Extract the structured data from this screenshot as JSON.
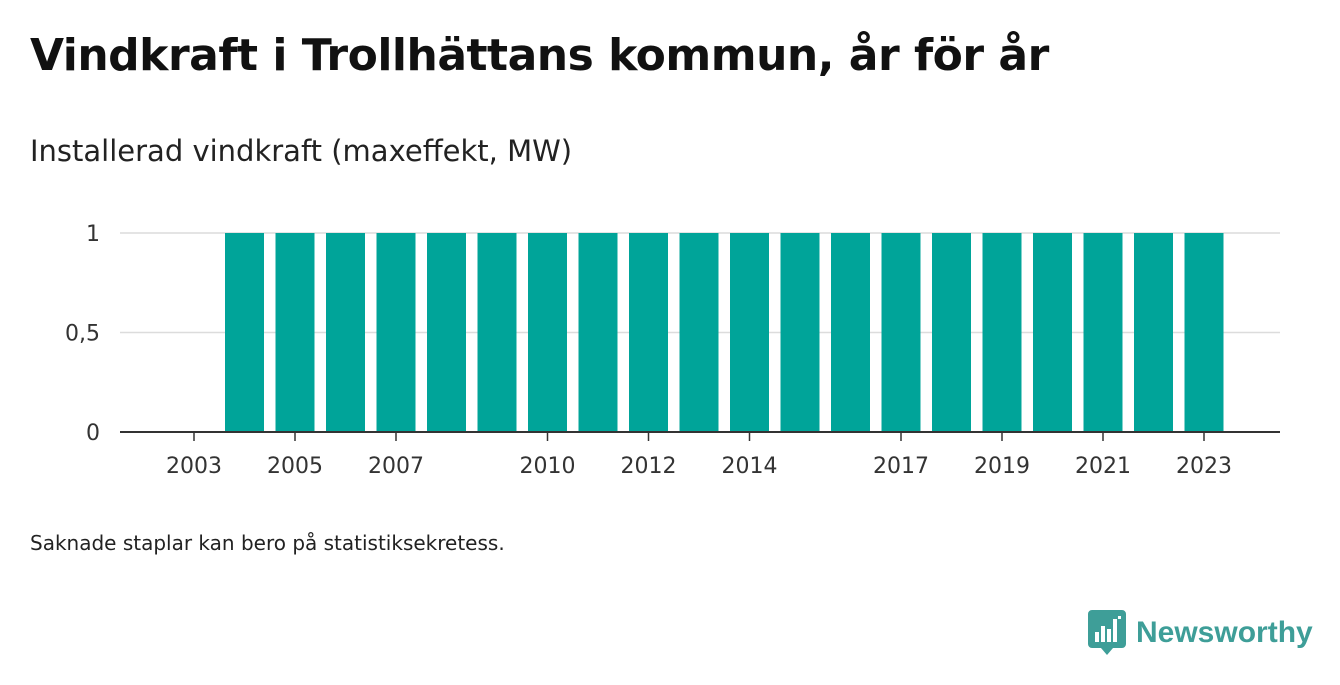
{
  "title": "Vindkraft i Trollhättans kommun, år för år",
  "subtitle": "Installerad vindkraft (maxeffekt, MW)",
  "note": "Saknade staplar kan bero på statistiksekretess.",
  "brand": {
    "name": "Newsworthy",
    "icon": "newsworthy-logo-icon",
    "color": "#3e9e98"
  },
  "chart_data": {
    "type": "bar",
    "categories": [
      "2003",
      "2004",
      "2005",
      "2006",
      "2007",
      "2008",
      "2009",
      "2010",
      "2011",
      "2012",
      "2013",
      "2014",
      "2015",
      "2016",
      "2017",
      "2018",
      "2019",
      "2020",
      "2021",
      "2022",
      "2023"
    ],
    "values": [
      null,
      1,
      1,
      1,
      1,
      1,
      1,
      1,
      1,
      1,
      1,
      1,
      1,
      1,
      1,
      1,
      1,
      1,
      1,
      1,
      1
    ],
    "x_tick_labels": [
      "2003",
      "2005",
      "2007",
      "2010",
      "2012",
      "2014",
      "2017",
      "2019",
      "2021",
      "2023"
    ],
    "y_tick_labels": [
      "0",
      "0,5",
      "1"
    ],
    "y_ticks": [
      0,
      0.5,
      1
    ],
    "ylim": [
      0,
      1
    ],
    "bar_color": "#00a499",
    "grid": true,
    "legend": "none",
    "xlabel": "",
    "ylabel": ""
  }
}
